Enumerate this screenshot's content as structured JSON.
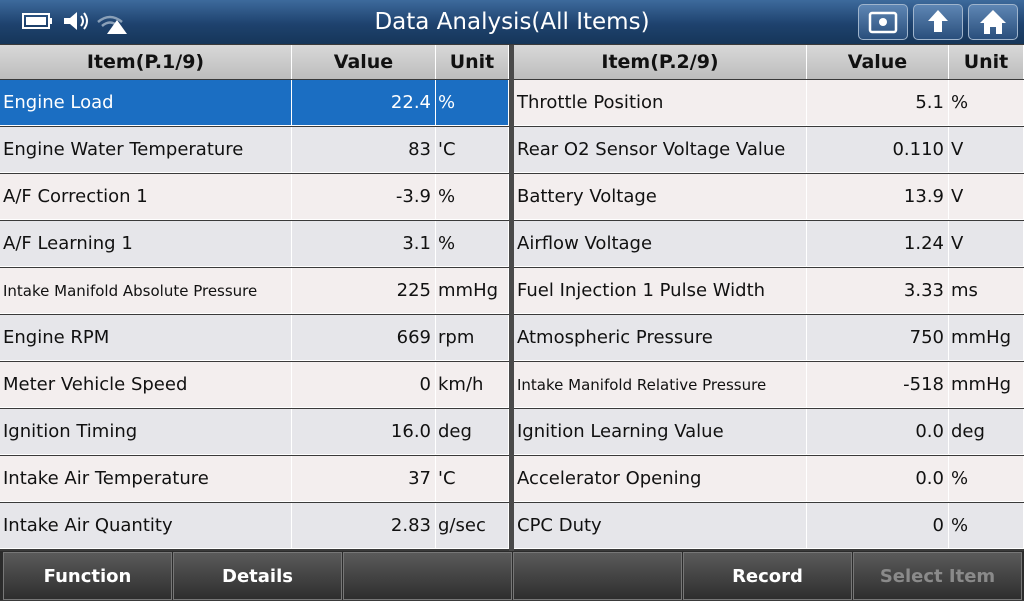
{
  "header": {
    "title": "Data Analysis(All Items)"
  },
  "tables": [
    {
      "columns": [
        "Item(P.1/9)",
        "Value",
        "Unit"
      ],
      "rows": [
        [
          "Engine Load",
          "22.4",
          "%"
        ],
        [
          "Engine Water Temperature",
          "83",
          "'C"
        ],
        [
          "A/F Correction 1",
          "-3.9",
          "%"
        ],
        [
          "A/F Learning 1",
          "3.1",
          "%"
        ],
        [
          "Intake Manifold Absolute Pressure",
          "225",
          "mmHg"
        ],
        [
          "Engine RPM",
          "669",
          "rpm"
        ],
        [
          "Meter Vehicle Speed",
          "0",
          "km/h"
        ],
        [
          "Ignition Timing",
          "16.0",
          "deg"
        ],
        [
          "Intake Air Temperature",
          "37",
          "'C"
        ],
        [
          "Intake Air Quantity",
          "2.83",
          "g/sec"
        ]
      ]
    },
    {
      "columns": [
        "Item(P.2/9)",
        "Value",
        "Unit"
      ],
      "rows": [
        [
          "Throttle Position",
          "5.1",
          "%"
        ],
        [
          "Rear O2 Sensor Voltage Value",
          "0.110",
          "V"
        ],
        [
          "Battery Voltage",
          "13.9",
          "V"
        ],
        [
          "Airflow Voltage",
          "1.24",
          "V"
        ],
        [
          "Fuel Injection 1 Pulse Width",
          "3.33",
          "ms"
        ],
        [
          "Atmospheric Pressure",
          "750",
          "mmHg"
        ],
        [
          "Intake Manifold Relative Pressure",
          "-518",
          "mmHg"
        ],
        [
          "Ignition Learning Value",
          "0.0",
          "deg"
        ],
        [
          "Accelerator Opening",
          "0.0",
          "%"
        ],
        [
          "CPC Duty",
          "0",
          "%"
        ]
      ]
    }
  ],
  "footer": {
    "buttons": [
      "Function",
      "Details",
      "Record",
      "Select Item"
    ]
  }
}
